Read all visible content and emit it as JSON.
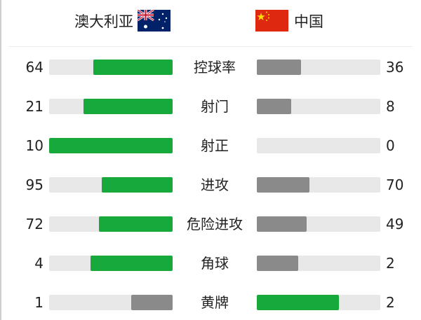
{
  "header": {
    "home_team": "澳大利亚",
    "away_team": "中国",
    "home_flag_icon": "australia-flag-icon",
    "away_flag_icon": "china-flag-icon"
  },
  "colors": {
    "leading": "#17a93c",
    "trailing": "#8a8a8a",
    "track": "#e8e8e8"
  },
  "stats": [
    {
      "label": "控球率",
      "home": 64,
      "away": 36
    },
    {
      "label": "射门",
      "home": 21,
      "away": 8
    },
    {
      "label": "射正",
      "home": 10,
      "away": 0
    },
    {
      "label": "进攻",
      "home": 95,
      "away": 70
    },
    {
      "label": "危险进攻",
      "home": 72,
      "away": 49
    },
    {
      "label": "角球",
      "home": 4,
      "away": 2
    },
    {
      "label": "黄牌",
      "home": 1,
      "away": 2
    }
  ]
}
